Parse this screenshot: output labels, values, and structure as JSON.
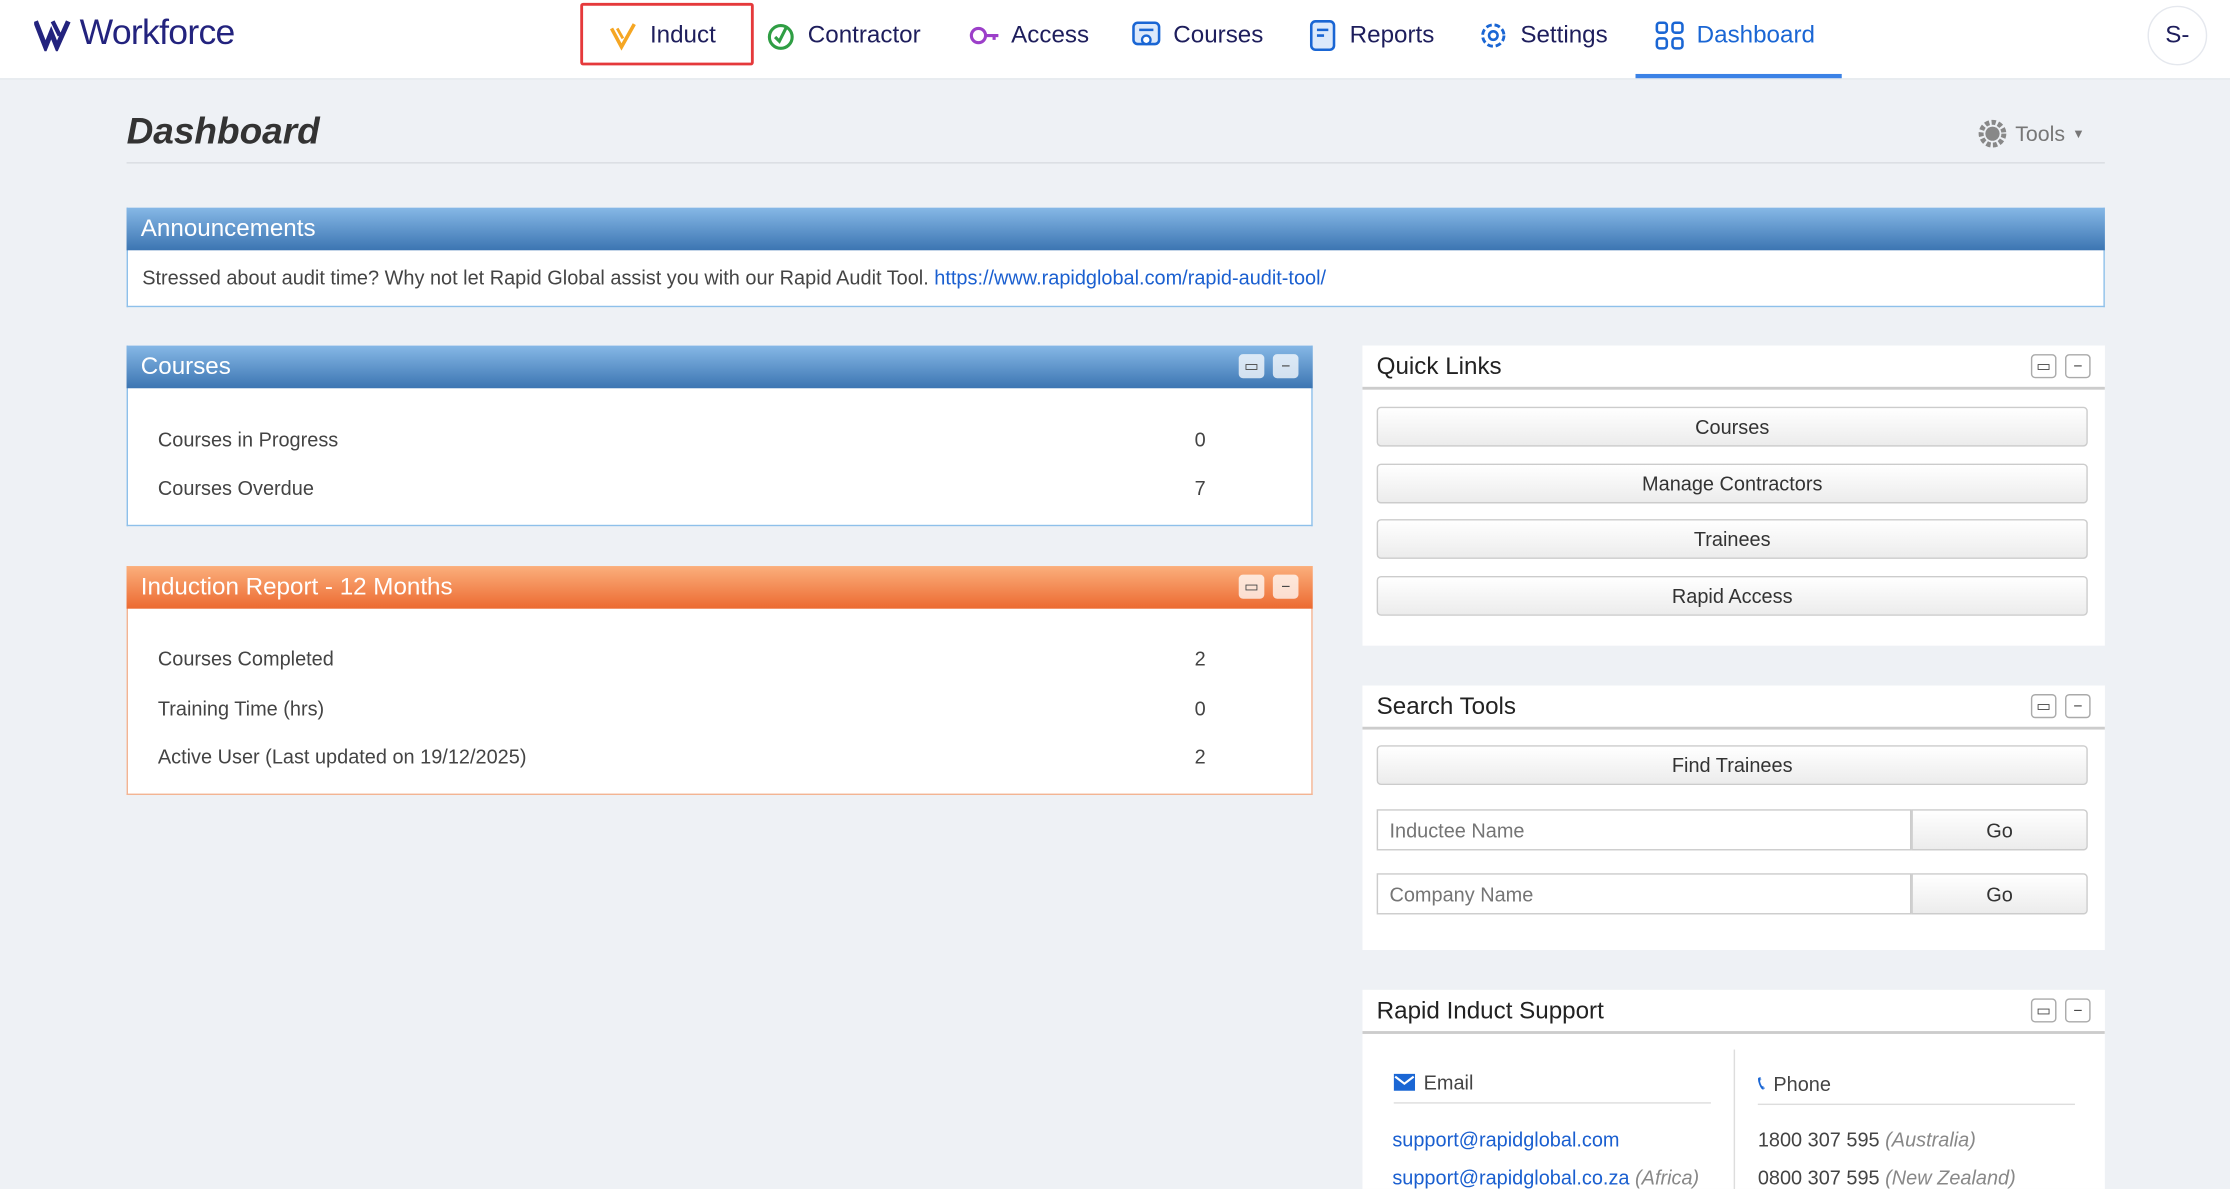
{
  "header": {
    "logo": "Workforce",
    "nav": [
      {
        "label": "Induct",
        "icon": "induct-check-icon",
        "color": "#f5a623"
      },
      {
        "label": "Contractor",
        "icon": "contractor-badge-icon",
        "color": "#2f9e44"
      },
      {
        "label": "Access",
        "icon": "key-icon",
        "color": "#9c3fc9"
      },
      {
        "label": "Courses",
        "icon": "certificate-icon",
        "color": "#1a66d4"
      },
      {
        "label": "Reports",
        "icon": "report-icon",
        "color": "#1a66d4"
      },
      {
        "label": "Settings",
        "icon": "gear-icon",
        "color": "#1a66d4"
      },
      {
        "label": "Dashboard",
        "icon": "grid-icon",
        "color": "#1a66d4",
        "active": true
      }
    ],
    "avatar": "S-"
  },
  "page": {
    "title": "Dashboard",
    "tools": "Tools"
  },
  "announcements": {
    "title": "Announcements",
    "text": "Stressed about audit time? Why not let Rapid Global assist you with our Rapid Audit Tool.",
    "link": "https://www.rapidglobal.com/rapid-audit-tool/"
  },
  "courses": {
    "title": "Courses",
    "rows": [
      {
        "label": "Courses in Progress",
        "value": "0"
      },
      {
        "label": "Courses Overdue",
        "value": "7"
      }
    ]
  },
  "induction": {
    "title": "Induction Report - 12 Months",
    "rows": [
      {
        "label": "Courses Completed",
        "value": "2"
      },
      {
        "label": "Training Time (hrs)",
        "value": "0"
      },
      {
        "label": "Active User (Last updated on 19/12/2025)",
        "value": "2"
      }
    ]
  },
  "quick_links": {
    "title": "Quick Links",
    "buttons": [
      "Courses",
      "Manage Contractors",
      "Trainees",
      "Rapid Access"
    ]
  },
  "search_tools": {
    "title": "Search Tools",
    "find_button": "Find Trainees",
    "inductee_placeholder": "Inductee Name",
    "company_placeholder": "Company Name",
    "go": "Go"
  },
  "support": {
    "title": "Rapid Induct Support",
    "email_heading": "Email",
    "phone_heading": "Phone",
    "emails": [
      {
        "address": "support@rapidglobal.com",
        "region": ""
      },
      {
        "address": "support@rapidglobal.co.za",
        "region": "(Africa)"
      }
    ],
    "phones": [
      {
        "number": "1800 307 595",
        "region": "(Australia)"
      },
      {
        "number": "0800 307 595",
        "region": "(New Zealand)"
      }
    ]
  },
  "colors": {
    "accent": "#1a66d4",
    "blue_header": "#3c75b2",
    "orange_header": "#ec6a31",
    "highlight": "#e5393b"
  }
}
